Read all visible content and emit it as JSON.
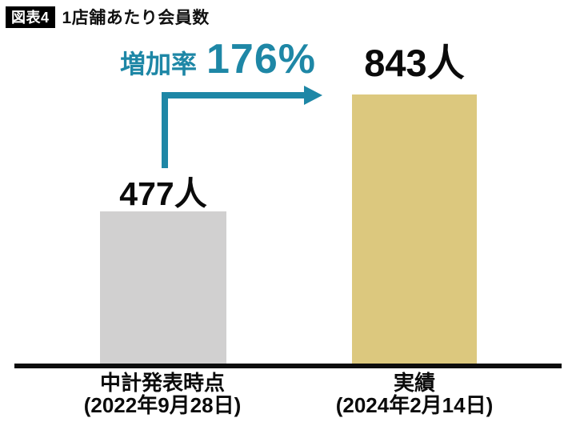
{
  "header": {
    "badge": "図表4",
    "title": "1店舗あたり会員数"
  },
  "annotation": {
    "label": "増加率",
    "value": "176%"
  },
  "colors": {
    "accent": "#1E87A6",
    "bar_before": "#D1D0D0",
    "bar_after": "#DCC87E",
    "axis": "#0D0D0D",
    "badge_bg": "#000000",
    "badge_text": "#FFFFFF"
  },
  "chart_data": {
    "type": "bar",
    "figure_label": "図表4",
    "title": "1店舗あたり会員数",
    "categories": [
      "中計発表時点 (2022年9月28日)",
      "実績 (2024年2月14日)"
    ],
    "values": [
      477,
      843
    ],
    "unit": "人",
    "value_labels": [
      "477人",
      "843人"
    ],
    "annotation": "増加率 176%",
    "ylim": [
      0,
      900
    ],
    "grid": false,
    "legend": false,
    "bars": [
      {
        "category": "中計発表時点",
        "date": "(2022年9月28日)",
        "value": 477,
        "value_label": "477人",
        "color": "#D1D0D0"
      },
      {
        "category": "実績",
        "date": "(2024年2月14日)",
        "value": 843,
        "value_label": "843人",
        "color": "#DCC87E"
      }
    ]
  }
}
